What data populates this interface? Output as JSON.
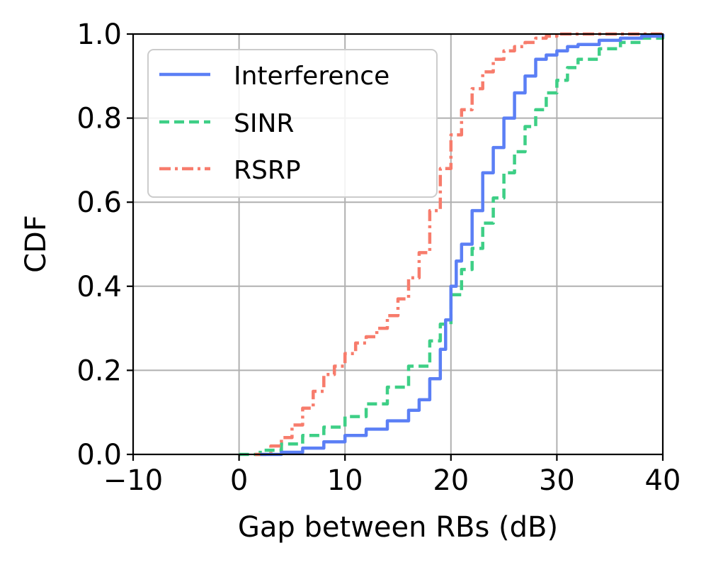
{
  "chart_data": {
    "type": "line",
    "title": "",
    "xlabel": "Gap between RBs (dB)",
    "ylabel": "CDF",
    "xlim": [
      -10,
      40
    ],
    "ylim": [
      0.0,
      1.0
    ],
    "xticks": [
      -10,
      0,
      10,
      20,
      30,
      40
    ],
    "xtick_labels": [
      "−10",
      "0",
      "10",
      "20",
      "30",
      "40"
    ],
    "yticks": [
      0.0,
      0.2,
      0.4,
      0.6,
      0.8,
      1.0
    ],
    "ytick_labels": [
      "0.0",
      "0.2",
      "0.4",
      "0.6",
      "0.8",
      "1.0"
    ],
    "grid": true,
    "legend_position": "top-left",
    "series": [
      {
        "name": "Interference",
        "color": "#5b7ff5",
        "style": "solid",
        "x": [
          2,
          4,
          6,
          8,
          10,
          12,
          14,
          16,
          17,
          18,
          19,
          19.5,
          20,
          20.5,
          21,
          22,
          23,
          24,
          25,
          26,
          27,
          28,
          29,
          30,
          31,
          32,
          34,
          36,
          38,
          40
        ],
        "y": [
          0.0,
          0.005,
          0.015,
          0.03,
          0.045,
          0.06,
          0.08,
          0.105,
          0.13,
          0.18,
          0.25,
          0.32,
          0.4,
          0.46,
          0.5,
          0.58,
          0.67,
          0.73,
          0.8,
          0.86,
          0.9,
          0.94,
          0.95,
          0.96,
          0.97,
          0.975,
          0.985,
          0.99,
          0.995,
          1.0
        ]
      },
      {
        "name": "SINR",
        "color": "#3ecf86",
        "style": "dashed",
        "x": [
          0,
          2,
          4,
          6,
          8,
          10,
          12,
          14,
          16,
          18,
          19,
          20,
          21,
          22,
          23,
          24,
          25,
          26,
          27,
          28,
          29,
          30,
          31,
          32,
          34,
          36,
          38,
          40
        ],
        "y": [
          0.0,
          0.01,
          0.025,
          0.045,
          0.065,
          0.09,
          0.12,
          0.16,
          0.21,
          0.27,
          0.31,
          0.38,
          0.44,
          0.49,
          0.55,
          0.61,
          0.67,
          0.72,
          0.78,
          0.82,
          0.86,
          0.89,
          0.92,
          0.94,
          0.965,
          0.98,
          0.99,
          1.0
        ]
      },
      {
        "name": "RSRP",
        "color": "#f77c6c",
        "style": "dashdot",
        "x": [
          1.5,
          3,
          4,
          5,
          6,
          7,
          8,
          9,
          10,
          11,
          12,
          13,
          14,
          15,
          16,
          17,
          18,
          19,
          20,
          21,
          22,
          23,
          24,
          25,
          26,
          27,
          28,
          29,
          30,
          32,
          34,
          36,
          38,
          40
        ],
        "y": [
          0.0,
          0.02,
          0.04,
          0.07,
          0.11,
          0.15,
          0.19,
          0.21,
          0.24,
          0.265,
          0.28,
          0.3,
          0.33,
          0.37,
          0.42,
          0.48,
          0.58,
          0.68,
          0.76,
          0.82,
          0.87,
          0.91,
          0.94,
          0.96,
          0.97,
          0.98,
          0.99,
          0.995,
          1.0,
          1.0,
          1.0,
          1.0,
          1.0,
          1.0
        ]
      }
    ]
  }
}
